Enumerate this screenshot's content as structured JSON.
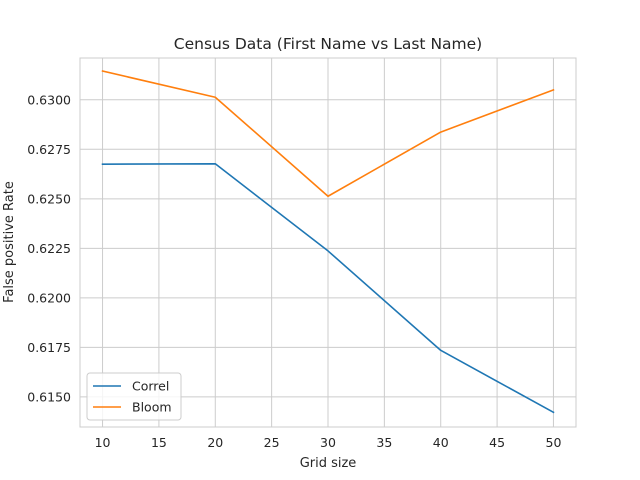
{
  "chart_data": {
    "type": "line",
    "title": "Census Data (First Name vs Last Name)",
    "xlabel": "Grid size",
    "ylabel": "False positive Rate",
    "x": [
      10,
      20,
      30,
      40,
      50
    ],
    "xticks": [
      "10",
      "15",
      "20",
      "25",
      "30",
      "35",
      "40",
      "45",
      "50"
    ],
    "yticks": [
      "0.6150",
      "0.6175",
      "0.6200",
      "0.6225",
      "0.6250",
      "0.6275",
      "0.6300"
    ],
    "xlim": [
      8,
      52
    ],
    "ylim": [
      0.61348,
      0.63211
    ],
    "grid": true,
    "legend_position": "lower-left",
    "series": [
      {
        "name": "Correl",
        "color": "#1f77b4",
        "values": [
          0.62675,
          0.62677,
          0.62237,
          0.61735,
          0.61422
        ]
      },
      {
        "name": "Bloom",
        "color": "#ff7f0e",
        "values": [
          0.63145,
          0.63013,
          0.62513,
          0.62837,
          0.6305
        ]
      }
    ]
  }
}
